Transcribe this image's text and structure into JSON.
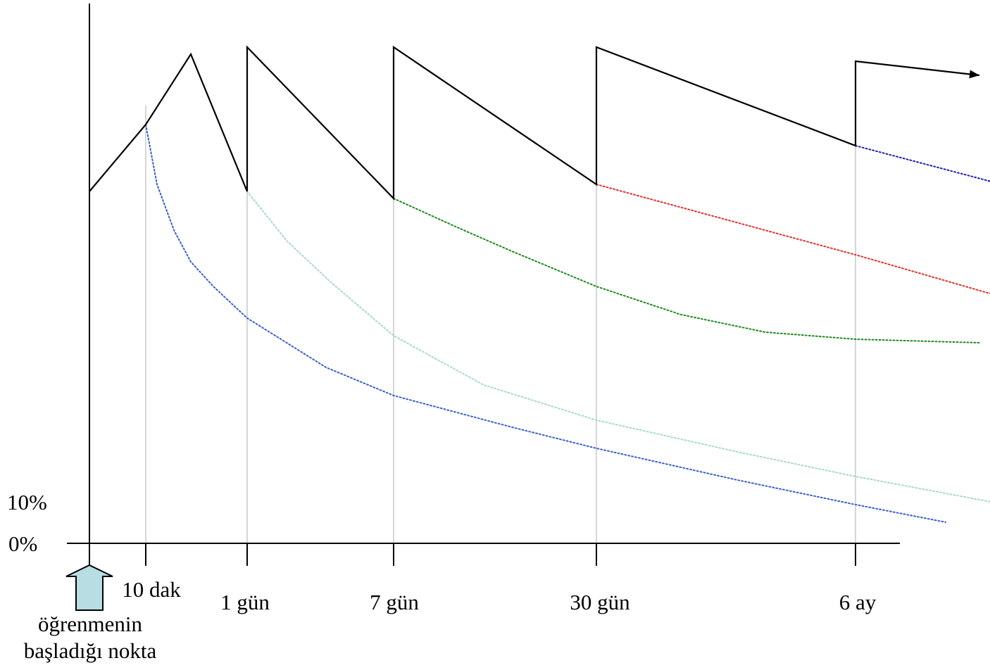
{
  "chart_data": {
    "type": "line",
    "title": "",
    "xlabel": "",
    "ylabel": "",
    "y_tick_labels": [
      "0%",
      "10%"
    ],
    "x_tick_labels": [
      "10 dak",
      "1 gün",
      "7 gün",
      "30 gün",
      "6 ay"
    ],
    "start_label_line1": "öğrenmenin",
    "start_label_line2": "başladığı nokta",
    "retention_path": [
      [
        0,
        100
      ],
      [
        1,
        119
      ],
      [
        1.8,
        139
      ],
      [
        2.8,
        100
      ],
      [
        2.8,
        141
      ],
      [
        5.4,
        98
      ],
      [
        5.4,
        141
      ],
      [
        9.0,
        102
      ],
      [
        9.0,
        141
      ],
      [
        13.6,
        113
      ],
      [
        13.6,
        137
      ],
      [
        15.8,
        133
      ]
    ],
    "forgetting_curves": [
      {
        "color": "#3a5fcd",
        "points": [
          [
            1,
            119
          ],
          [
            1.2,
            102
          ],
          [
            1.5,
            89
          ],
          [
            1.8,
            80
          ],
          [
            2.2,
            73
          ],
          [
            2.8,
            64
          ],
          [
            4.2,
            50
          ],
          [
            5.4,
            42
          ],
          [
            7.5,
            33
          ],
          [
            9.0,
            27
          ],
          [
            11.5,
            18
          ],
          [
            13.6,
            11
          ],
          [
            15.2,
            6
          ]
        ]
      },
      {
        "color": "#a8d8cf",
        "points": [
          [
            2.8,
            100
          ],
          [
            3.5,
            86
          ],
          [
            4.3,
            74
          ],
          [
            5.4,
            59
          ],
          [
            7.0,
            45
          ],
          [
            9.0,
            35
          ],
          [
            11.5,
            26
          ],
          [
            13.6,
            19
          ],
          [
            16.6,
            10
          ]
        ]
      },
      {
        "color": "#1e8a1e",
        "points": [
          [
            5.4,
            98
          ],
          [
            6.5,
            90
          ],
          [
            7.5,
            83
          ],
          [
            9.0,
            73
          ],
          [
            10.5,
            65
          ],
          [
            12.0,
            60
          ],
          [
            13.6,
            58
          ],
          [
            15.8,
            57
          ]
        ]
      },
      {
        "color": "#e53030",
        "points": [
          [
            9.0,
            102
          ],
          [
            13.6,
            82
          ],
          [
            16.2,
            70
          ]
        ]
      },
      {
        "color": "#2020b0",
        "points": [
          [
            13.6,
            113
          ],
          [
            16.2,
            102
          ]
        ]
      }
    ],
    "ylim": [
      0,
      145
    ],
    "xlim": [
      0,
      17
    ]
  }
}
